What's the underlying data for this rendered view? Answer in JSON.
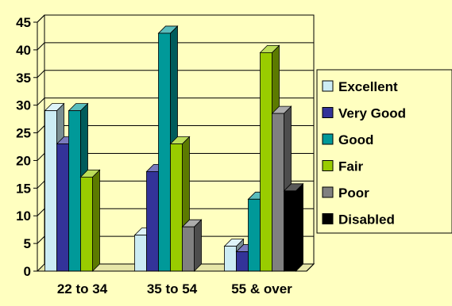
{
  "chart_data": {
    "type": "bar",
    "categories": [
      "22 to 34",
      "35 to 54",
      "55 & over"
    ],
    "series": [
      {
        "name": "Excellent",
        "color": "#ccecf4",
        "values": [
          29,
          6.5,
          4.5
        ]
      },
      {
        "name": "Very Good",
        "color": "#333399",
        "values": [
          23,
          18,
          3.5
        ]
      },
      {
        "name": "Good",
        "color": "#009999",
        "values": [
          29,
          43,
          13
        ]
      },
      {
        "name": "Fair",
        "color": "#99cc00",
        "values": [
          17,
          23,
          39.5
        ]
      },
      {
        "name": "Poor",
        "color": "#808080",
        "values": [
          0,
          8,
          28.5
        ]
      },
      {
        "name": "Disabled",
        "color": "#000000",
        "values": [
          0,
          0,
          14.5
        ]
      }
    ],
    "ylim": [
      0,
      45
    ],
    "yticks": [
      0,
      5,
      10,
      15,
      20,
      25,
      30,
      35,
      40,
      45
    ],
    "grid": true,
    "legend_position": "right",
    "title": "",
    "xlabel": "",
    "ylabel": ""
  }
}
